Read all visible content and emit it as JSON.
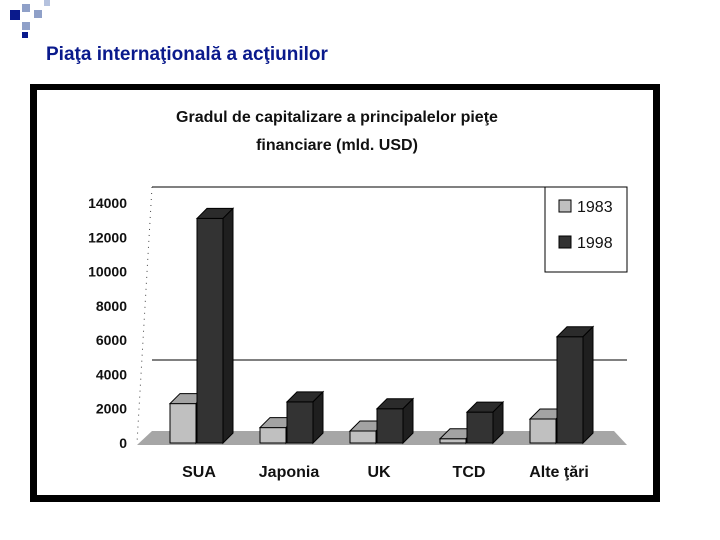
{
  "slide": {
    "title": "Piaţa internaţională a acţiunilor"
  },
  "colors": {
    "title": "#0a1a8c",
    "decor_dark": "#0a1a8c",
    "decor_light": "#8fa0c8",
    "bar_1983": "#c0c0c0",
    "bar_1998": "#333333",
    "frame": "#000000",
    "floor": "#a6a6a6"
  },
  "chart_data": {
    "type": "bar",
    "title_line1": "Gradul de capitalizare a principalelor pieţe",
    "title_line2": "financiare (mld. USD)",
    "categories": [
      "SUA",
      "Japonia",
      "UK",
      "TCD",
      "Alte ţări"
    ],
    "series": [
      {
        "name": "1983",
        "values": [
          2300,
          900,
          700,
          250,
          1400
        ]
      },
      {
        "name": "1998",
        "values": [
          13100,
          2400,
          2000,
          1800,
          6200
        ]
      }
    ],
    "y_ticks": [
      "0",
      "2000",
      "4000",
      "6000",
      "8000",
      "10000",
      "12000",
      "14000"
    ],
    "ylim": [
      0,
      14000
    ],
    "xlabel": "",
    "ylabel": "",
    "legend_position": "top-right",
    "chart_style": "3d"
  }
}
